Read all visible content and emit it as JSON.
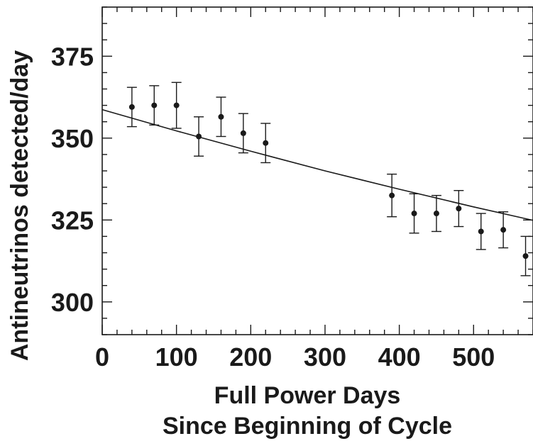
{
  "chart_data": {
    "type": "scatter",
    "xlabel_line1": "Full Power Days",
    "xlabel_line2": "Since Beginning of Cycle",
    "ylabel": "Antineutrinos detected/day",
    "xlim": [
      0,
      580
    ],
    "ylim": [
      290,
      390
    ],
    "xticks": [
      0,
      100,
      200,
      300,
      400,
      500
    ],
    "xtick_labels": [
      "0",
      "100",
      "200",
      "300",
      "400",
      "500"
    ],
    "yticks": [
      300,
      325,
      350,
      375
    ],
    "ytick_labels": [
      "300",
      "325",
      "350",
      "375"
    ],
    "x_minor_step": 20,
    "y_minor_step": 5,
    "grid": false,
    "series": [
      {
        "points": [
          {
            "x": 40,
            "y": 359.5,
            "err": 6
          },
          {
            "x": 70,
            "y": 360,
            "err": 6
          },
          {
            "x": 100,
            "y": 360,
            "err": 7
          },
          {
            "x": 130,
            "y": 350.5,
            "err": 6
          },
          {
            "x": 160,
            "y": 356.5,
            "err": 6
          },
          {
            "x": 190,
            "y": 351.5,
            "err": 6
          },
          {
            "x": 220,
            "y": 348.5,
            "err": 6
          },
          {
            "x": 390,
            "y": 332.5,
            "err": 6.5
          },
          {
            "x": 420,
            "y": 327,
            "err": 6
          },
          {
            "x": 450,
            "y": 327,
            "err": 5.5
          },
          {
            "x": 480,
            "y": 328.5,
            "err": 5.5
          },
          {
            "x": 510,
            "y": 321.5,
            "err": 5.5
          },
          {
            "x": 540,
            "y": 322,
            "err": 5.5
          },
          {
            "x": 570,
            "y": 314,
            "err": 6
          }
        ]
      }
    ],
    "fit_line": {
      "x": [
        0,
        100,
        200,
        300,
        400,
        500,
        580
      ],
      "y": [
        358.7,
        352.2,
        346.0,
        340.0,
        334.4,
        329.0,
        324.9
      ]
    }
  }
}
